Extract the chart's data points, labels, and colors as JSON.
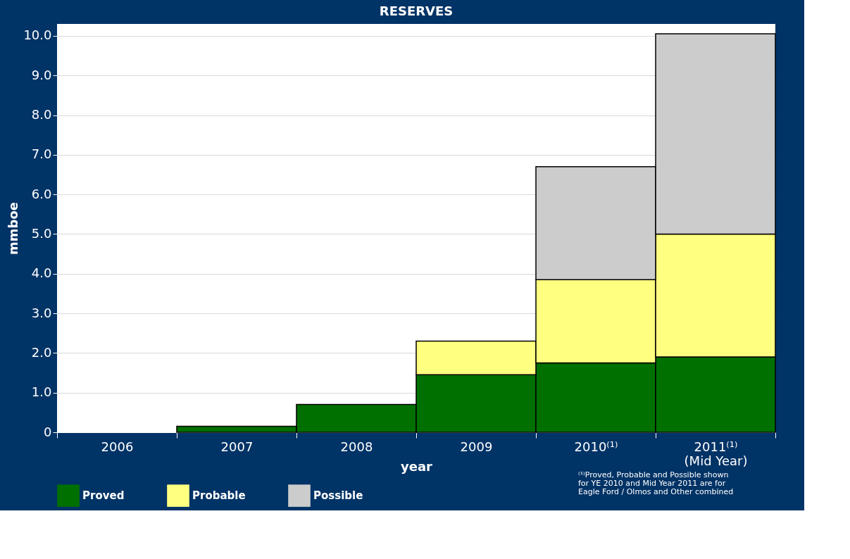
{
  "chart_data": {
    "type": "bar",
    "title": "RESERVES",
    "xlabel": "year",
    "ylabel": "mmboe",
    "stacked": true,
    "categories": [
      "2006",
      "2007",
      "2008",
      "2009",
      "2010⁽¹⁾",
      "2011⁽¹⁾\n(Mid Year)"
    ],
    "series": [
      {
        "name": "Proved",
        "color": "#007000",
        "values": [
          null,
          0.15,
          0.7,
          1.45,
          1.75,
          1.9
        ]
      },
      {
        "name": "Probable",
        "color": "#ffff80",
        "values": [
          null,
          null,
          null,
          0.85,
          2.1,
          3.1
        ]
      },
      {
        "name": "Possible",
        "color": "#cccccc",
        "values": [
          null,
          null,
          null,
          null,
          2.85,
          5.05
        ]
      }
    ],
    "ylim": [
      0,
      10.3
    ],
    "yticks": [
      {
        "value": 0,
        "label": "0"
      },
      {
        "value": 1,
        "label": "1.0"
      },
      {
        "value": 2,
        "label": "2.0"
      },
      {
        "value": 3,
        "label": "3.0"
      },
      {
        "value": 4,
        "label": "4.0"
      },
      {
        "value": 5,
        "label": "5.0"
      },
      {
        "value": 6,
        "label": "6.0"
      },
      {
        "value": 7,
        "label": "7.0"
      },
      {
        "value": 8,
        "label": "8.0"
      },
      {
        "value": 9,
        "label": "9.0"
      },
      {
        "value": 10,
        "label": "10.0"
      }
    ],
    "grid": "y",
    "legend": "bottom",
    "annotations": [
      "⁽¹⁾Proved, Probable and Possible shown\nfor YE 2010 and Mid Year 2011 are for\nEagle Ford / Olmos and Other combined"
    ]
  }
}
